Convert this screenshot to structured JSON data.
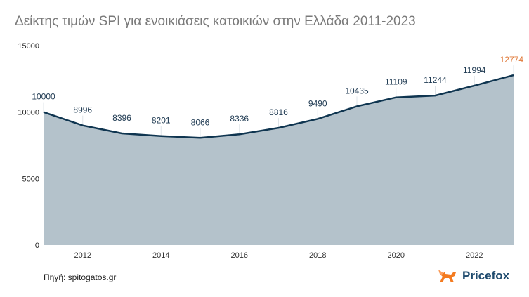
{
  "title": "Δείκτης τιμών SPI για ενοικιάσεις κατοικιών στην Ελλάδα 2011-2023",
  "source": "Πηγή: spitogatos.gr",
  "brand": {
    "name": "Pricefox",
    "icon": "fox-logo-icon",
    "color": "#1f4b6e",
    "accent": "#f47b20"
  },
  "colors": {
    "area": "#b4c2cb",
    "line": "#0f3550",
    "label": "#1f3a52",
    "highlight": "#e07a3a"
  },
  "chart_data": {
    "type": "area",
    "title": "Δείκτης τιμών SPI για ενοικιάσεις κατοικιών στην Ελλάδα 2011-2023",
    "xlabel": "",
    "ylabel": "",
    "x": [
      2011,
      2012,
      2013,
      2014,
      2015,
      2016,
      2017,
      2018,
      2019,
      2020,
      2021,
      2022,
      2023
    ],
    "values": [
      10000,
      8996,
      8396,
      8201,
      8066,
      8336,
      8816,
      9490,
      10435,
      11109,
      11244,
      11994,
      12774
    ],
    "ylim": [
      0,
      15000
    ],
    "yticks": [
      0,
      5000,
      10000,
      15000
    ],
    "xticks": [
      2012,
      2014,
      2016,
      2018,
      2020,
      2022
    ],
    "grid": false,
    "legend": "none",
    "annotations": "data labels on every point; last point highlighted in orange"
  }
}
